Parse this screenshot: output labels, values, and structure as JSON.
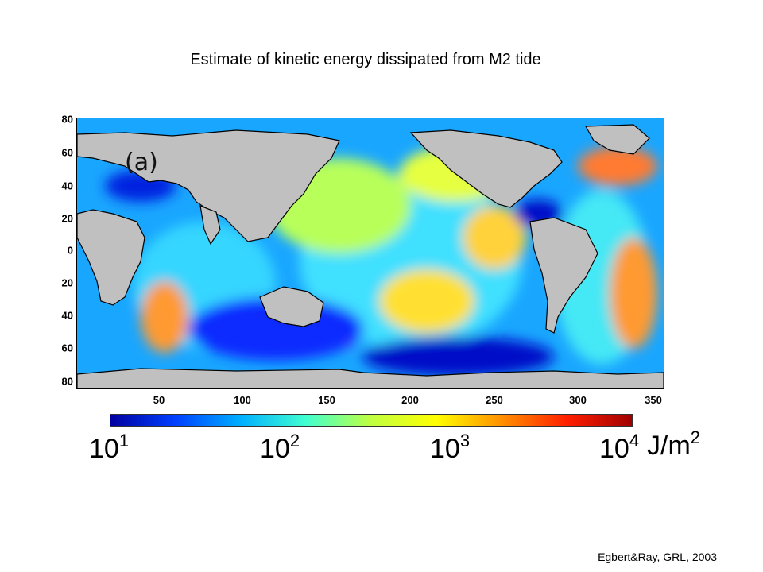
{
  "title": "Estimate of kinetic energy dissipated from M2 tide",
  "map": {
    "panel_label": "(a)",
    "y_ticks": [
      "80",
      "60",
      "40",
      "20",
      "0",
      "20",
      "40",
      "60",
      "80"
    ],
    "x_ticks": [
      "50",
      "100",
      "150",
      "200",
      "250",
      "300",
      "350"
    ],
    "land_color": "#c0c0c0",
    "coastline_color": "#000000"
  },
  "colorbar": {
    "labels": [
      {
        "base": "10",
        "exp": "1"
      },
      {
        "base": "10",
        "exp": "2"
      },
      {
        "base": "10",
        "exp": "3"
      },
      {
        "base": "10",
        "exp": "4"
      }
    ],
    "units_base": "J/m",
    "units_exp": "2",
    "colors": [
      "#0000a0",
      "#0040ff",
      "#00b0ff",
      "#40ffd0",
      "#c0ff40",
      "#ffff00",
      "#ff9000",
      "#ff2000",
      "#a00000"
    ]
  },
  "credit": "Egbert&Ray, GRL, 2003"
}
